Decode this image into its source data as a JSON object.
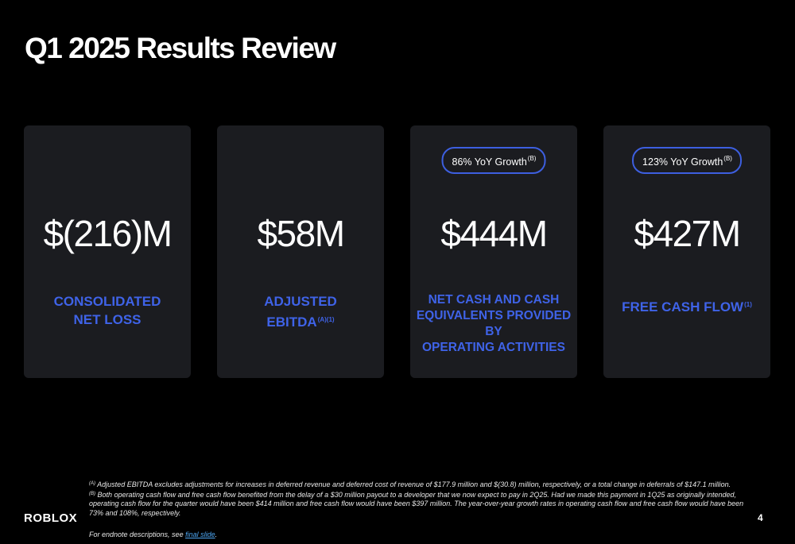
{
  "slide": {
    "title": "Q1 2025 Results Review",
    "page_number": "4",
    "logo_text": "ROBLOX"
  },
  "cards": [
    {
      "value": "$(216)M",
      "label_line1": "CONSOLIDATED",
      "label_line2": "NET LOSS"
    },
    {
      "value": "$58M",
      "label_line1": "ADJUSTED",
      "label_line2": "EBITDA",
      "label_sup": "(A)(1)"
    },
    {
      "badge": "86% YoY Growth",
      "badge_sup": "(B)",
      "value": "$444M",
      "label_line1": "NET CASH AND CASH",
      "label_line2": "EQUIVALENTS PROVIDED BY",
      "label_line3": "OPERATING ACTIVITIES"
    },
    {
      "badge": "123% YoY Growth",
      "badge_sup": "(B)",
      "value": "$427M",
      "label_line1": "FREE CASH FLOW",
      "label_sup": "(1)"
    }
  ],
  "footnotes": {
    "a_marker": "(A)",
    "a_text": "Adjusted EBITDA excludes adjustments for increases in deferred revenue and deferred cost of revenue of $177.9 million and $(30.8) million, respectively, or a total change in deferrals of $147.1 million.",
    "b_marker": "(B)",
    "b_text": "Both operating cash flow and free cash flow benefited from the delay of a $30 million payout to a developer that we now expect to pay in 2Q25.  Had we made this payment in 1Q25 as originally intended, operating cash flow for the quarter would have been $414 million and free cash flow would have been $397 million. The year-over-year growth rates in operating cash flow and free cash flow would have been 73% and 108%, respectively.",
    "endnote_prefix": "For endnote descriptions, see ",
    "endnote_link": "final slide",
    "endnote_suffix": "."
  },
  "colors": {
    "background": "#000000",
    "card": "#1b1c20",
    "accent_blue": "#3f63e8",
    "badge_border": "#3d5fe0",
    "link": "#4ea8f5"
  }
}
